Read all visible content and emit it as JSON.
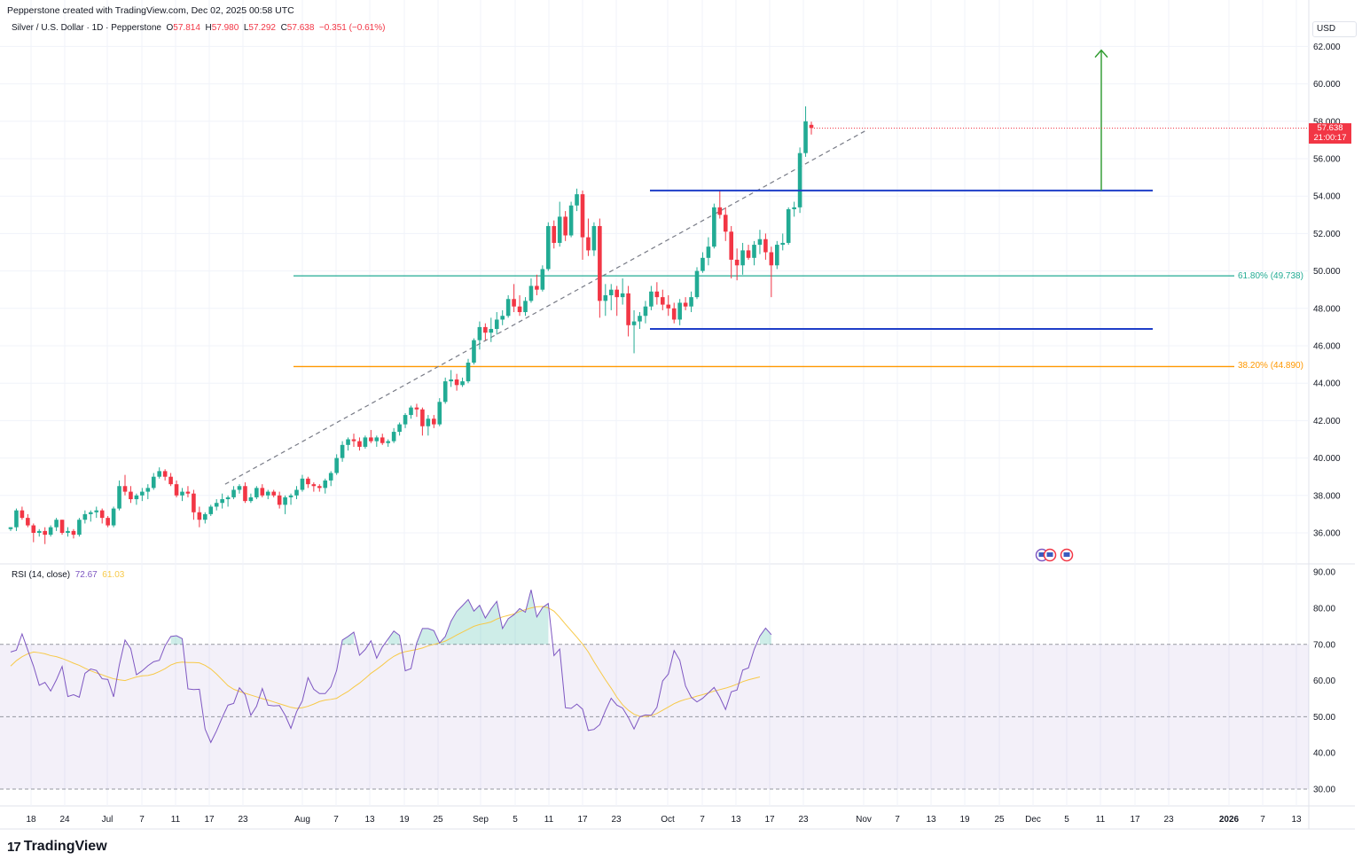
{
  "header": {
    "credit": "Pepperstone created with TradingView.com, Dec 02, 2025 00:58 UTC",
    "symbol": "Silver / U.S. Dollar · 1D · Pepperstone",
    "o_label": "O",
    "o": "57.814",
    "h_label": "H",
    "h": "57.980",
    "l_label": "L",
    "l": "57.292",
    "c_label": "C",
    "c": "57.638",
    "change": "−0.351 (−0.61%)"
  },
  "currency": "USD",
  "last_price": {
    "value": "57.638",
    "countdown": "21:00:17"
  },
  "branding": {
    "name": "TradingView",
    "mark": "17"
  },
  "rsi_legend": {
    "label": "RSI (14, close)",
    "rsi": "72.67",
    "ma": "61.03"
  },
  "colors": {
    "up": "#22ab94",
    "down": "#f23645",
    "rsi": "#7e57c2",
    "rsi_ma": "#f7c948",
    "level_line": "#1e3ec8",
    "fib618": "#22ab94",
    "fib382": "#ff9800",
    "target_arrow": "#2e9b2e"
  },
  "chart_data": [
    {
      "type": "candlestick",
      "title": "Silver / U.S. Dollar · 1D · Pepperstone",
      "ylim": [
        35,
        63
      ],
      "price_ticks": [
        "36.000",
        "38.000",
        "40.000",
        "42.000",
        "44.000",
        "46.000",
        "48.000",
        "50.000",
        "52.000",
        "54.000",
        "56.000",
        "58.000",
        "60.000",
        "62.000"
      ],
      "x_ticks": [
        "18",
        "24",
        "Jul",
        "7",
        "11",
        "17",
        "23",
        "Aug",
        "7",
        "13",
        "19",
        "25",
        "Sep",
        "5",
        "11",
        "17",
        "23",
        "Oct",
        "7",
        "13",
        "17",
        "23",
        "Nov",
        "7",
        "13",
        "19",
        "25",
        "Dec",
        "5",
        "11",
        "17",
        "23",
        "2026",
        "7",
        "13"
      ],
      "candles": [
        [
          36.2,
          36.3,
          36.1,
          36.3
        ],
        [
          36.3,
          37.3,
          36.1,
          37.2
        ],
        [
          37.2,
          37.4,
          36.7,
          36.8
        ],
        [
          36.8,
          37.0,
          36.3,
          36.4
        ],
        [
          36.4,
          36.5,
          35.5,
          36.0
        ],
        [
          36.0,
          36.2,
          35.8,
          36.1
        ],
        [
          36.1,
          36.3,
          35.4,
          35.9
        ],
        [
          35.9,
          36.4,
          35.8,
          36.3
        ],
        [
          36.3,
          36.8,
          36.1,
          36.7
        ],
        [
          36.7,
          36.7,
          35.9,
          36.0
        ],
        [
          36.0,
          36.3,
          35.8,
          36.1
        ],
        [
          36.1,
          36.2,
          35.7,
          35.9
        ],
        [
          35.9,
          36.8,
          35.8,
          36.7
        ],
        [
          36.7,
          37.2,
          36.5,
          37.0
        ],
        [
          37.0,
          37.2,
          36.6,
          37.1
        ],
        [
          37.1,
          37.4,
          36.8,
          37.2
        ],
        [
          37.2,
          37.3,
          36.5,
          36.8
        ],
        [
          36.8,
          36.9,
          36.3,
          36.4
        ],
        [
          36.4,
          37.4,
          36.3,
          37.3
        ],
        [
          37.3,
          38.8,
          37.2,
          38.5
        ],
        [
          38.5,
          39.1,
          38.0,
          38.2
        ],
        [
          38.2,
          38.5,
          37.6,
          37.8
        ],
        [
          37.8,
          38.1,
          37.5,
          38.0
        ],
        [
          38.0,
          38.4,
          37.7,
          38.2
        ],
        [
          38.2,
          38.6,
          37.8,
          38.4
        ],
        [
          38.4,
          39.2,
          38.3,
          39.0
        ],
        [
          39.0,
          39.5,
          38.9,
          39.3
        ],
        [
          39.3,
          39.4,
          38.8,
          39.0
        ],
        [
          39.0,
          39.2,
          38.5,
          38.6
        ],
        [
          38.6,
          38.8,
          37.9,
          38.0
        ],
        [
          38.0,
          38.4,
          37.7,
          38.2
        ],
        [
          38.2,
          38.5,
          37.9,
          38.1
        ],
        [
          38.1,
          38.3,
          36.7,
          37.1
        ],
        [
          37.1,
          37.4,
          36.3,
          36.7
        ],
        [
          36.7,
          37.1,
          36.5,
          37.0
        ],
        [
          37.0,
          37.5,
          36.9,
          37.4
        ],
        [
          37.4,
          37.8,
          37.2,
          37.6
        ],
        [
          37.6,
          38.1,
          37.3,
          37.8
        ],
        [
          37.8,
          38.0,
          37.4,
          37.9
        ],
        [
          37.9,
          38.5,
          37.8,
          38.3
        ],
        [
          38.3,
          38.6,
          38.1,
          38.5
        ],
        [
          38.5,
          38.7,
          37.6,
          37.7
        ],
        [
          37.7,
          38.1,
          37.6,
          37.9
        ],
        [
          37.9,
          38.5,
          37.8,
          38.4
        ],
        [
          38.4,
          38.6,
          37.9,
          38.0
        ],
        [
          38.0,
          38.3,
          37.8,
          38.2
        ],
        [
          38.2,
          38.3,
          37.9,
          38.0
        ],
        [
          38.0,
          38.2,
          37.3,
          37.5
        ],
        [
          37.5,
          38.0,
          37.0,
          37.9
        ],
        [
          37.9,
          38.1,
          37.5,
          38.0
        ],
        [
          38.0,
          38.5,
          37.8,
          38.3
        ],
        [
          38.3,
          39.1,
          38.2,
          38.9
        ],
        [
          38.9,
          39.0,
          38.4,
          38.6
        ],
        [
          38.6,
          38.7,
          38.2,
          38.5
        ],
        [
          38.5,
          38.6,
          38.2,
          38.4
        ],
        [
          38.4,
          38.9,
          38.1,
          38.8
        ],
        [
          38.8,
          39.3,
          38.5,
          39.2
        ],
        [
          39.2,
          40.2,
          39.1,
          40.0
        ],
        [
          40.0,
          40.9,
          39.8,
          40.7
        ],
        [
          40.7,
          41.1,
          40.4,
          41.0
        ],
        [
          41.0,
          41.3,
          40.6,
          40.9
        ],
        [
          40.9,
          41.1,
          40.4,
          40.6
        ],
        [
          40.6,
          41.2,
          40.5,
          41.1
        ],
        [
          41.1,
          41.5,
          40.8,
          40.9
        ],
        [
          40.9,
          41.2,
          40.6,
          41.1
        ],
        [
          41.1,
          41.3,
          40.7,
          40.8
        ],
        [
          40.8,
          41.0,
          40.6,
          40.9
        ],
        [
          40.9,
          41.6,
          40.8,
          41.4
        ],
        [
          41.4,
          41.9,
          41.2,
          41.8
        ],
        [
          41.8,
          42.4,
          41.6,
          42.3
        ],
        [
          42.3,
          42.8,
          42.1,
          42.7
        ],
        [
          42.7,
          42.9,
          42.2,
          42.6
        ],
        [
          42.6,
          42.7,
          41.2,
          41.7
        ],
        [
          41.7,
          42.3,
          41.2,
          42.1
        ],
        [
          42.1,
          42.3,
          41.6,
          41.8
        ],
        [
          41.8,
          43.2,
          41.7,
          43.0
        ],
        [
          43.0,
          44.3,
          42.9,
          44.1
        ],
        [
          44.1,
          44.7,
          43.8,
          44.2
        ],
        [
          44.2,
          44.5,
          43.6,
          43.9
        ],
        [
          43.9,
          44.3,
          43.8,
          44.1
        ],
        [
          44.1,
          45.3,
          44.0,
          45.1
        ],
        [
          45.1,
          46.4,
          45.0,
          46.3
        ],
        [
          46.3,
          47.3,
          45.8,
          47.0
        ],
        [
          47.0,
          47.2,
          46.3,
          46.7
        ],
        [
          46.7,
          47.5,
          46.2,
          46.9
        ],
        [
          46.9,
          47.8,
          46.6,
          47.4
        ],
        [
          47.4,
          47.9,
          47.1,
          47.6
        ],
        [
          47.6,
          48.7,
          47.5,
          48.5
        ],
        [
          48.5,
          49.3,
          47.8,
          48.1
        ],
        [
          48.1,
          48.7,
          47.6,
          47.8
        ],
        [
          47.8,
          48.6,
          47.6,
          48.4
        ],
        [
          48.4,
          49.6,
          48.3,
          49.2
        ],
        [
          49.2,
          49.8,
          48.7,
          49.0
        ],
        [
          49.0,
          50.3,
          48.9,
          50.1
        ],
        [
          50.1,
          52.6,
          50.0,
          52.4
        ],
        [
          52.4,
          52.7,
          51.2,
          51.5
        ],
        [
          51.5,
          53.7,
          51.3,
          52.9
        ],
        [
          52.9,
          53.2,
          51.6,
          51.9
        ],
        [
          51.9,
          53.7,
          51.8,
          53.5
        ],
        [
          53.5,
          54.4,
          53.2,
          54.1
        ],
        [
          54.1,
          54.3,
          50.6,
          51.8
        ],
        [
          51.8,
          52.8,
          50.8,
          51.1
        ],
        [
          51.1,
          52.6,
          50.8,
          52.4
        ],
        [
          52.4,
          52.8,
          47.5,
          48.4
        ],
        [
          48.4,
          49.3,
          47.6,
          48.7
        ],
        [
          48.7,
          49.3,
          47.9,
          49.0
        ],
        [
          49.0,
          49.2,
          47.6,
          48.6
        ],
        [
          48.6,
          49.6,
          48.2,
          48.8
        ],
        [
          48.8,
          49.2,
          46.5,
          47.1
        ],
        [
          47.1,
          47.9,
          45.6,
          47.3
        ],
        [
          47.3,
          47.8,
          46.9,
          47.6
        ],
        [
          47.6,
          48.4,
          47.2,
          48.1
        ],
        [
          48.1,
          49.2,
          47.9,
          48.9
        ],
        [
          48.9,
          49.4,
          48.2,
          48.6
        ],
        [
          48.6,
          49.0,
          47.9,
          48.2
        ],
        [
          48.2,
          48.7,
          47.6,
          48.0
        ],
        [
          48.0,
          48.3,
          47.2,
          47.4
        ],
        [
          47.4,
          48.5,
          47.1,
          48.3
        ],
        [
          48.3,
          48.6,
          47.9,
          48.1
        ],
        [
          48.1,
          48.9,
          47.8,
          48.6
        ],
        [
          48.6,
          50.2,
          48.5,
          50.0
        ],
        [
          50.0,
          51.0,
          49.9,
          50.7
        ],
        [
          50.7,
          51.8,
          50.3,
          51.3
        ],
        [
          51.3,
          53.6,
          51.2,
          53.4
        ],
        [
          53.4,
          54.3,
          52.8,
          53.0
        ],
        [
          53.0,
          53.4,
          51.6,
          52.1
        ],
        [
          52.1,
          52.4,
          49.6,
          50.6
        ],
        [
          50.6,
          51.2,
          49.5,
          50.3
        ],
        [
          50.3,
          51.5,
          49.8,
          51.1
        ],
        [
          51.1,
          51.4,
          50.6,
          50.7
        ],
        [
          50.7,
          51.6,
          50.3,
          51.4
        ],
        [
          51.4,
          52.2,
          50.9,
          51.7
        ],
        [
          51.7,
          52.0,
          50.6,
          51.0
        ],
        [
          51.0,
          51.3,
          48.6,
          50.3
        ],
        [
          50.3,
          51.6,
          50.1,
          51.4
        ],
        [
          51.4,
          52.0,
          51.1,
          51.5
        ],
        [
          51.5,
          53.4,
          51.4,
          53.3
        ],
        [
          53.3,
          53.7,
          52.9,
          53.4
        ],
        [
          53.4,
          56.6,
          53.1,
          56.3
        ],
        [
          56.3,
          58.8,
          56.1,
          58.0
        ],
        [
          57.81,
          57.98,
          57.29,
          57.64
        ]
      ]
    },
    {
      "type": "line",
      "title": "RSI (14, close)",
      "ylim": [
        30,
        90
      ],
      "y_ticks": [
        "30.00",
        "40.00",
        "50.00",
        "60.00",
        "70.00",
        "80.00",
        "90.00"
      ],
      "bands": [
        30,
        50,
        70
      ],
      "series": [
        {
          "name": "RSI",
          "values": [
            67.9,
            68.4,
            72.9,
            68.4,
            64.0,
            58.7,
            59.5,
            57.1,
            60.2,
            63.9,
            55.6,
            56.1,
            55.4,
            62.0,
            63.2,
            62.8,
            60.5,
            60.3,
            55.5,
            64.3,
            71.2,
            68.8,
            61.6,
            62.7,
            64.1,
            65.2,
            65.6,
            69.6,
            72.2,
            72.4,
            71.6,
            57.7,
            57.5,
            57.6,
            46.6,
            42.9,
            46.1,
            49.8,
            53.2,
            53.7,
            58.0,
            56.1,
            50.4,
            52.9,
            57.8,
            53.2,
            53.0,
            53.1,
            50.4,
            46.8,
            51.4,
            54.4,
            60.8,
            57.6,
            56.4,
            56.4,
            58.3,
            62.8,
            71.2,
            72.2,
            73.4,
            67.0,
            68.6,
            71.0,
            66.2,
            69.3,
            71.5,
            73.7,
            72.5,
            62.7,
            63.3,
            70.4,
            74.4,
            74.4,
            73.8,
            70.4,
            72.2,
            76.4,
            79.1,
            80.7,
            82.4,
            79.2,
            80.8,
            77.3,
            79.8,
            81.9,
            74.4,
            77.1,
            78.2,
            79.9,
            78.9,
            85.1,
            77.6,
            80.2,
            81.3,
            66.9,
            68.7,
            52.5,
            52.3,
            53.5,
            52.1,
            46.2,
            46.5,
            47.8,
            51.7,
            55.1,
            53.2,
            52.4,
            49.8,
            46.6,
            50.0,
            50.5,
            50.4,
            52.6,
            59.9,
            61.8,
            68.3,
            65.6,
            58.5,
            55.4,
            54.1,
            55.1,
            56.6,
            58.1,
            55.4,
            52.0,
            56.9,
            57.4,
            62.9,
            63.5,
            68.6,
            72.3,
            74.5,
            72.7
          ]
        },
        {
          "name": "RSI-based MA",
          "values": [
            64.0,
            65.5,
            66.6,
            67.4,
            67.9,
            67.7,
            67.4,
            66.9,
            66.6,
            66.1,
            65.5,
            64.8,
            64.2,
            63.4,
            62.7,
            62.1,
            61.6,
            61.0,
            60.5,
            60.2,
            60.0,
            60.5,
            61.0,
            61.3,
            61.4,
            61.8,
            62.5,
            63.3,
            64.3,
            64.9,
            65.1,
            65.0,
            65.0,
            64.9,
            64.2,
            63.2,
            61.8,
            60.2,
            58.6,
            57.6,
            57.0,
            56.5,
            56.0,
            55.5,
            55.0,
            54.6,
            54.1,
            53.6,
            53.1,
            52.6,
            52.3,
            52.5,
            52.9,
            53.5,
            54.2,
            54.6,
            54.8,
            55.1,
            56.1,
            57.0,
            58.2,
            59.3,
            60.6,
            62.0,
            63.1,
            64.3,
            65.6,
            66.7,
            67.5,
            68.0,
            68.3,
            68.6,
            69.0,
            69.6,
            70.0,
            70.4,
            70.9,
            71.7,
            72.6,
            73.4,
            74.2,
            75.0,
            75.5,
            75.8,
            76.2,
            77.0,
            77.6,
            78.0,
            78.4,
            79.1,
            79.6,
            80.1,
            80.4,
            80.5,
            80.1,
            79.2,
            77.5,
            75.6,
            73.8,
            72.0,
            70.1,
            67.9,
            65.2,
            62.7,
            60.2,
            57.9,
            55.4,
            53.3,
            51.8,
            50.7,
            50.1,
            50.1,
            50.3,
            50.9,
            51.8,
            52.7,
            53.6,
            54.3,
            54.8,
            55.2,
            55.7,
            56.1,
            56.6,
            57.1,
            57.5,
            57.9,
            58.4,
            59.0,
            59.7,
            60.2,
            60.6,
            61.0
          ]
        }
      ]
    }
  ],
  "drawings": {
    "resistance": 54.3,
    "support": 46.9,
    "fib_618": {
      "label": "61.80% (49.738)",
      "value": 49.738
    },
    "fib_382": {
      "label": "38.20% (44.890)",
      "value": 44.89
    },
    "trendline": {
      "from": [
        37.5,
        38.6
      ],
      "to": [
        149.5,
        57.5
      ]
    },
    "target": {
      "base": 54.3,
      "top": 61.8
    }
  }
}
